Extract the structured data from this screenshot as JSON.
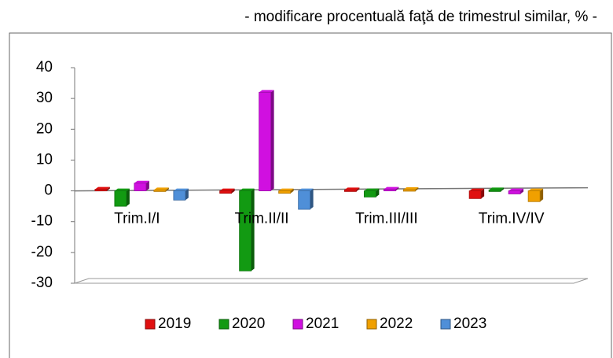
{
  "chart_data": {
    "type": "bar",
    "title": "- modificare procentuală faţă de trimestrul similar, % -",
    "categories": [
      "Trim.I/I",
      "Trim.II/II",
      "Trim.III/III",
      "Trim.IV/IV"
    ],
    "series": [
      {
        "name": "2019",
        "color": "#e01010",
        "values": [
          0.5,
          -0.8,
          0.3,
          -2.5
        ]
      },
      {
        "name": "2020",
        "color": "#129a12",
        "values": [
          -5,
          -26,
          -2,
          0.3
        ]
      },
      {
        "name": "2021",
        "color": "#d010e0",
        "values": [
          2.5,
          32,
          0.5,
          -1
        ]
      },
      {
        "name": "2022",
        "color": "#f0a000",
        "values": [
          0.3,
          -0.8,
          0.4,
          -3.5
        ]
      },
      {
        "name": "2023",
        "color": "#4f8fd8",
        "values": [
          -3,
          -6,
          null,
          null
        ]
      }
    ],
    "ylim": [
      -30,
      40
    ],
    "yticks": [
      -30,
      -20,
      -10,
      0,
      10,
      20,
      30,
      40
    ],
    "legend": "bottom"
  }
}
